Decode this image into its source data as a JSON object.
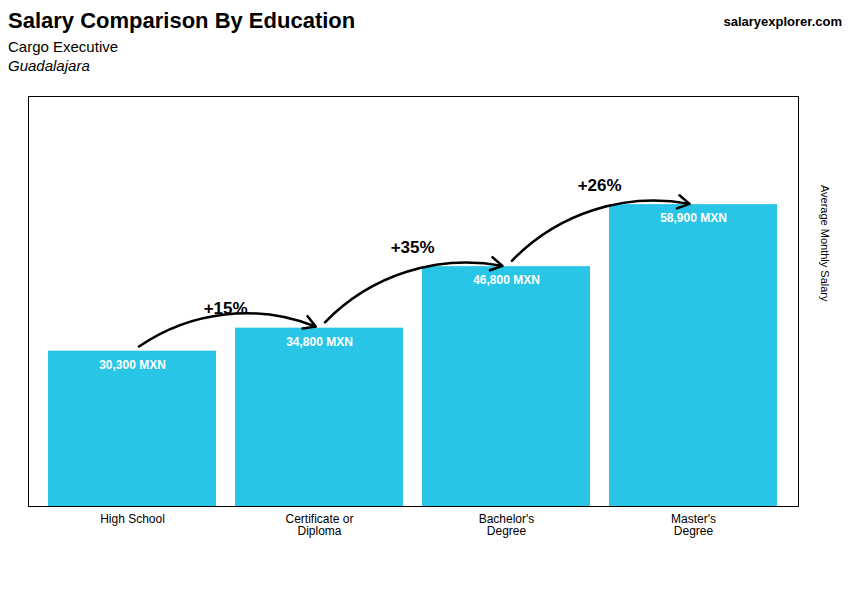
{
  "chart_data": {
    "type": "bar",
    "title": "Salary Comparison By Education",
    "subtitle": "Cargo Executive",
    "y_label": "Average Monthly Salary",
    "categories": [
      "High School",
      "Certificate or\nDiploma",
      "Bachelor's\nDegree",
      "Master's\nDegree"
    ],
    "values": [
      30300,
      34800,
      46800,
      58900
    ],
    "value_labels": [
      "30,300 MXN",
      "34,800 MXN",
      "46,800 MXN",
      "58,900 MXN"
    ],
    "data_labels": true,
    "color": "#29c5e6",
    "ylim": [
      0,
      80000
    ],
    "tick_labels": "x",
    "grid": false,
    "annotations": [
      {
        "text": "Guadalajara"
      },
      {
        "text": "salaryexplorer.com"
      },
      {
        "text": "+15%",
        "from": "High School",
        "to": "Certificate or\nDiploma"
      },
      {
        "text": "+35%",
        "from": "Certificate or\nDiploma",
        "to": "Bachelor's\nDegree"
      },
      {
        "text": "+26%",
        "from": "Bachelor's\nDegree",
        "to": "Master's\nDegree"
      }
    ]
  }
}
